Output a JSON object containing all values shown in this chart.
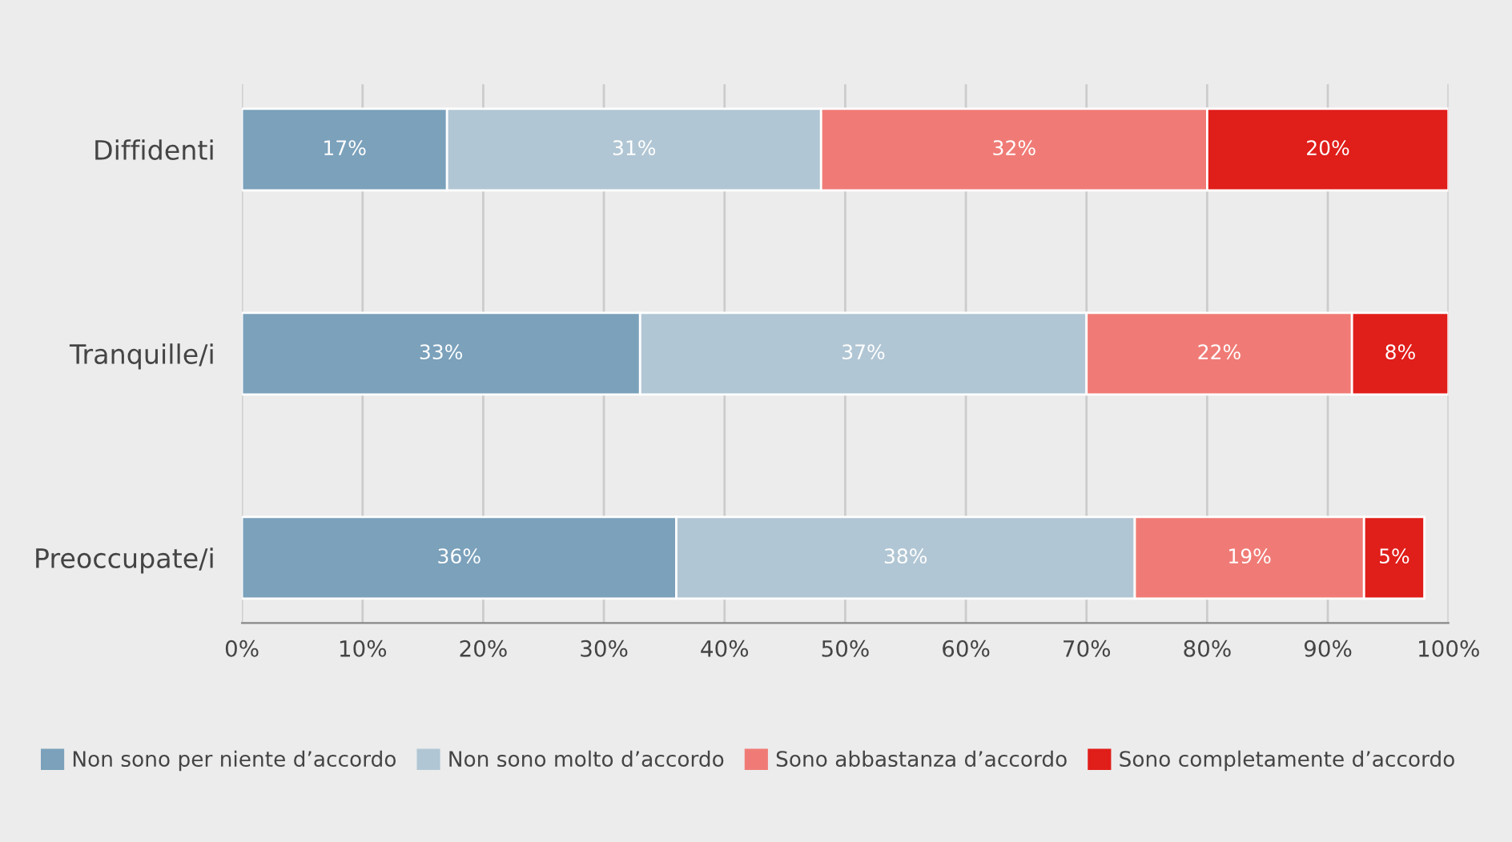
{
  "chart_data": {
    "type": "bar",
    "orientation": "horizontal",
    "stacked": true,
    "categories": [
      "Diffidenti",
      "Tranquille/i",
      "Preoccupate/i"
    ],
    "series": [
      {
        "name": "Non sono per niente d’accordo",
        "color": "#7ba1bb",
        "values": [
          17,
          33,
          36
        ],
        "value_labels": [
          "17%",
          "33%",
          "36%"
        ]
      },
      {
        "name": "Non sono molto d’accordo",
        "color": "#b1c6d4",
        "values": [
          31,
          37,
          38
        ],
        "value_labels": [
          "31%",
          "37%",
          "38%"
        ]
      },
      {
        "name": "Sono abbastanza d’accordo",
        "color": "#f07b76",
        "values": [
          32,
          22,
          19
        ],
        "value_labels": [
          "32%",
          "22%",
          "19%"
        ]
      },
      {
        "name": "Sono completamente d’accordo",
        "color": "#e01e1a",
        "values": [
          20,
          8,
          5
        ],
        "value_labels": [
          "20%",
          "8%",
          "5%"
        ]
      }
    ],
    "xlim": [
      0,
      100
    ],
    "xticks": [
      {
        "value": 0,
        "label": "0%"
      },
      {
        "value": 10,
        "label": "10%"
      },
      {
        "value": 20,
        "label": "20%"
      },
      {
        "value": 30,
        "label": "30%"
      },
      {
        "value": 40,
        "label": "40%"
      },
      {
        "value": 50,
        "label": "50%"
      },
      {
        "value": 60,
        "label": "60%"
      },
      {
        "value": 70,
        "label": "70%"
      },
      {
        "value": 80,
        "label": "80%"
      },
      {
        "value": 90,
        "label": "90%"
      },
      {
        "value": 100,
        "label": "100%"
      }
    ],
    "grid": "x",
    "legend": "bottom"
  }
}
